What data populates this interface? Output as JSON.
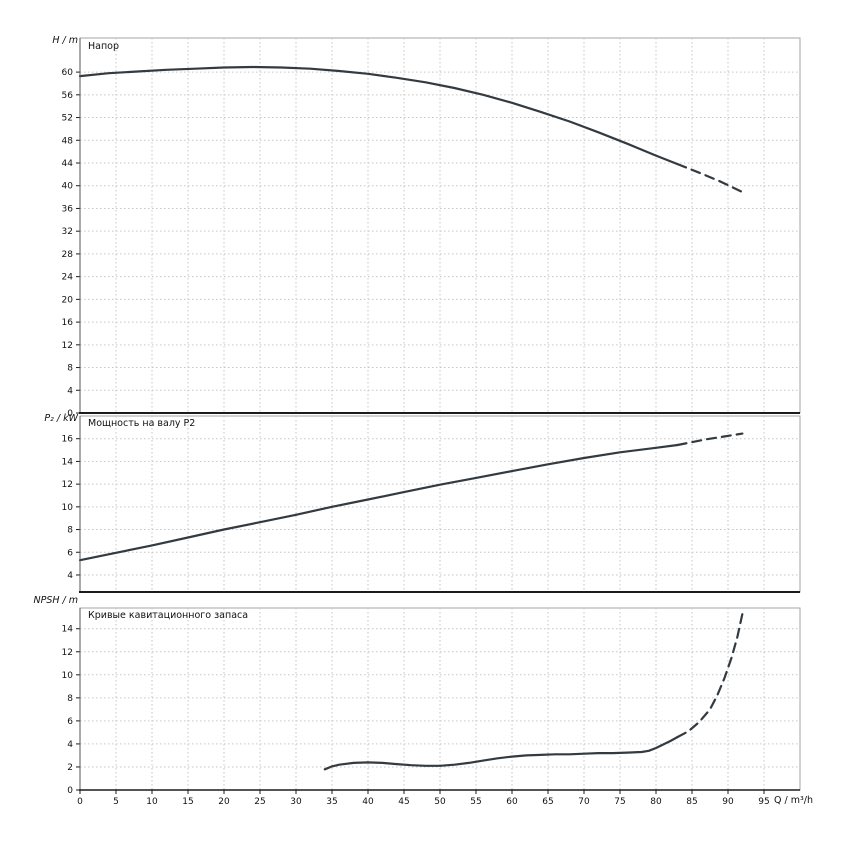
{
  "colors": {
    "curve": "#333b41",
    "grid": "#c6c6c6",
    "axis": "#1b1b1b",
    "border": "#a6a6a6",
    "background": "#ffffff"
  },
  "x_axis": {
    "label": "Q / m³/h",
    "lim": [
      0,
      100
    ],
    "ticks": [
      0,
      5,
      10,
      15,
      20,
      25,
      30,
      35,
      40,
      45,
      50,
      55,
      60,
      65,
      70,
      75,
      80,
      85,
      90,
      95
    ]
  },
  "chart_data": [
    {
      "type": "line",
      "title": "Напор",
      "ylabel": "H / m",
      "xlabel": "Q / m³/h",
      "ylim": [
        0,
        66
      ],
      "yticks": [
        0,
        4,
        8,
        12,
        16,
        20,
        24,
        28,
        32,
        36,
        40,
        44,
        48,
        52,
        56,
        60
      ],
      "grid": true,
      "legend": false,
      "series": [
        {
          "name": "H",
          "style": "solid",
          "points": [
            [
              0,
              59.3
            ],
            [
              4,
              59.8
            ],
            [
              8,
              60.1
            ],
            [
              12,
              60.4
            ],
            [
              16,
              60.6
            ],
            [
              20,
              60.8
            ],
            [
              24,
              60.9
            ],
            [
              28,
              60.8
            ],
            [
              32,
              60.6
            ],
            [
              36,
              60.2
            ],
            [
              40,
              59.7
            ],
            [
              44,
              59.0
            ],
            [
              48,
              58.2
            ],
            [
              52,
              57.2
            ],
            [
              56,
              56.0
            ],
            [
              60,
              54.6
            ],
            [
              64,
              53.0
            ],
            [
              68,
              51.3
            ],
            [
              72,
              49.4
            ],
            [
              76,
              47.4
            ],
            [
              80,
              45.3
            ],
            [
              83,
              43.8
            ]
          ]
        },
        {
          "name": "H_extrapolated",
          "style": "dashed",
          "points": [
            [
              83,
              43.8
            ],
            [
              86,
              42.3
            ],
            [
              89,
              40.7
            ],
            [
              92,
              38.9
            ]
          ]
        }
      ]
    },
    {
      "type": "line",
      "title": "Мощность на валу P2",
      "ylabel": "P₂ / kW",
      "xlabel": "Q / m³/h",
      "ylim": [
        2.5,
        18
      ],
      "yticks": [
        4,
        6,
        8,
        10,
        12,
        14,
        16
      ],
      "grid": true,
      "legend": false,
      "series": [
        {
          "name": "P2",
          "style": "solid",
          "points": [
            [
              0,
              5.3
            ],
            [
              5,
              5.95
            ],
            [
              10,
              6.6
            ],
            [
              15,
              7.3
            ],
            [
              20,
              8.0
            ],
            [
              25,
              8.65
            ],
            [
              30,
              9.3
            ],
            [
              35,
              10.0
            ],
            [
              40,
              10.65
            ],
            [
              45,
              11.3
            ],
            [
              50,
              11.95
            ],
            [
              55,
              12.55
            ],
            [
              60,
              13.15
            ],
            [
              65,
              13.75
            ],
            [
              70,
              14.3
            ],
            [
              75,
              14.8
            ],
            [
              80,
              15.2
            ],
            [
              83,
              15.45
            ]
          ]
        },
        {
          "name": "P2_extrapolated",
          "style": "dashed",
          "points": [
            [
              83,
              15.45
            ],
            [
              87,
              15.95
            ],
            [
              92,
              16.45
            ]
          ]
        }
      ]
    },
    {
      "type": "line",
      "title": "Кривые кавитационного запаса",
      "ylabel": "NPSH / m",
      "xlabel": "Q / m³/h",
      "ylim": [
        0,
        15.8
      ],
      "yticks": [
        0,
        2,
        4,
        6,
        8,
        10,
        12,
        14
      ],
      "grid": true,
      "legend": false,
      "series": [
        {
          "name": "NPSH",
          "style": "solid",
          "points": [
            [
              34,
              1.8
            ],
            [
              35,
              2.05
            ],
            [
              36,
              2.2
            ],
            [
              38,
              2.35
            ],
            [
              40,
              2.4
            ],
            [
              42,
              2.35
            ],
            [
              44,
              2.25
            ],
            [
              46,
              2.15
            ],
            [
              48,
              2.1
            ],
            [
              50,
              2.1
            ],
            [
              52,
              2.2
            ],
            [
              54,
              2.35
            ],
            [
              56,
              2.55
            ],
            [
              58,
              2.75
            ],
            [
              60,
              2.9
            ],
            [
              62,
              3.0
            ],
            [
              64,
              3.05
            ],
            [
              66,
              3.1
            ],
            [
              68,
              3.1
            ],
            [
              70,
              3.15
            ],
            [
              72,
              3.2
            ],
            [
              74,
              3.2
            ],
            [
              76,
              3.25
            ],
            [
              78,
              3.3
            ],
            [
              79,
              3.4
            ],
            [
              80,
              3.65
            ],
            [
              81,
              3.95
            ],
            [
              82,
              4.25
            ],
            [
              83,
              4.6
            ]
          ]
        },
        {
          "name": "NPSH_extrapolated",
          "style": "dashed",
          "points": [
            [
              83,
              4.6
            ],
            [
              84.5,
              5.1
            ],
            [
              86,
              5.9
            ],
            [
              87.5,
              7.0
            ],
            [
              88.5,
              8.2
            ],
            [
              89.5,
              9.7
            ],
            [
              90.5,
              11.5
            ],
            [
              91.3,
              13.3
            ],
            [
              92,
              15.3
            ]
          ]
        }
      ]
    }
  ]
}
